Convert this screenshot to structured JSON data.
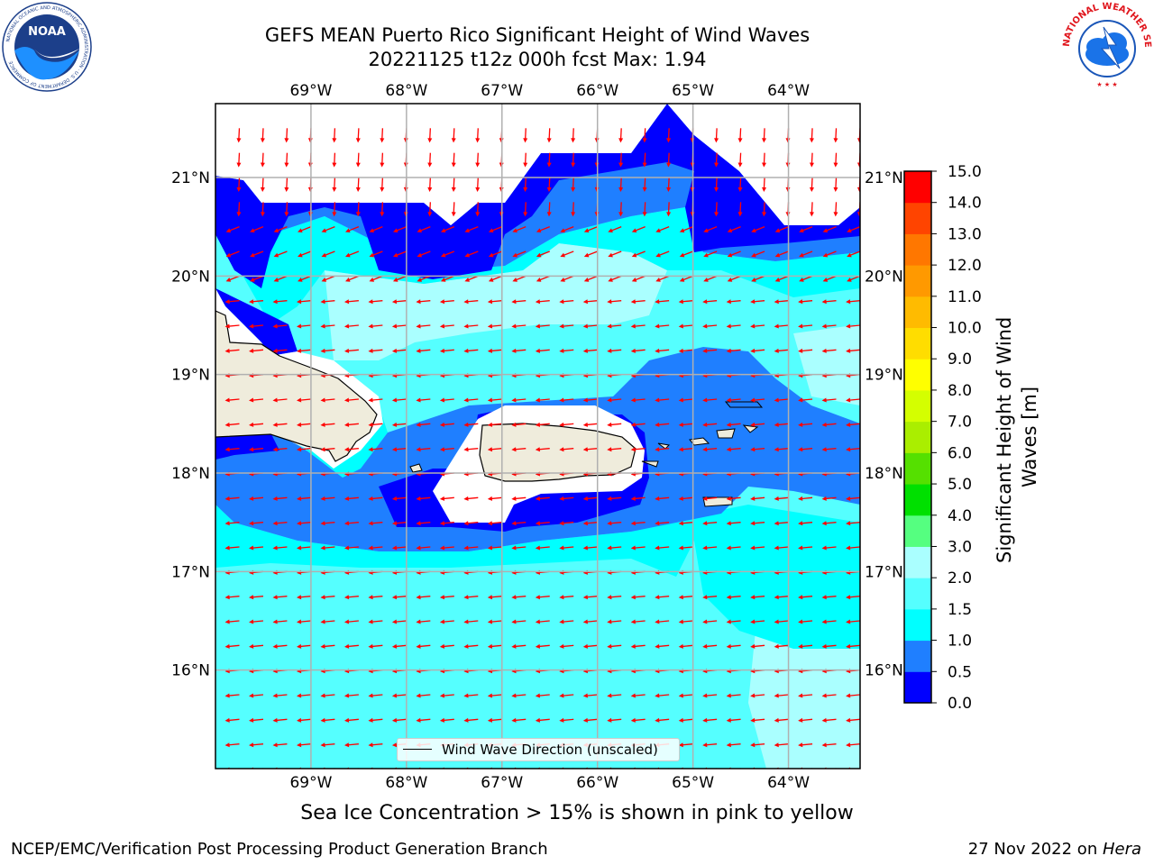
{
  "title": {
    "line1": "GEFS MEAN Puerto Rico Significant Height of Wind Waves",
    "line2": "20221125 t12z 000h fcst   Max: 1.94"
  },
  "map": {
    "lon_range": [
      -70,
      -63.25
    ],
    "lat_range": [
      15,
      21.75
    ],
    "lon_ticks": [
      {
        "value": -69,
        "label": "69°W"
      },
      {
        "value": -68,
        "label": "68°W"
      },
      {
        "value": -67,
        "label": "67°W"
      },
      {
        "value": -66,
        "label": "66°W"
      },
      {
        "value": -65,
        "label": "65°W"
      },
      {
        "value": -64,
        "label": "64°W"
      }
    ],
    "lat_ticks": [
      {
        "value": 21,
        "label": "21°N"
      },
      {
        "value": 20,
        "label": "20°N"
      },
      {
        "value": 19,
        "label": "19°N"
      },
      {
        "value": 18,
        "label": "18°N"
      },
      {
        "value": 17,
        "label": "17°N"
      },
      {
        "value": 16,
        "label": "16°N"
      }
    ],
    "gridlines": true,
    "land_color": "#efecdc",
    "arrow_color": "#ff0000",
    "legend": {
      "label": "Wind Wave Direction (unscaled)",
      "location": "lower-center"
    }
  },
  "colorbar": {
    "label": "Significant Height of Wind Waves [m]",
    "ticks": [
      "0.0",
      "0.5",
      "1.0",
      "1.5",
      "2.0",
      "3.0",
      "4.0",
      "5.0",
      "6.0",
      "7.0",
      "8.0",
      "9.0",
      "10.0",
      "11.0",
      "12.0",
      "13.0",
      "14.0",
      "15.0"
    ],
    "colors": [
      "#0000ff",
      "#1f7fff",
      "#00ffff",
      "#55ffff",
      "#aaffff",
      "#55ff80",
      "#00e000",
      "#55e000",
      "#aaee00",
      "#d4ff00",
      "#ffff00",
      "#ffdd00",
      "#ffbb00",
      "#ff9900",
      "#ff7700",
      "#ff4400",
      "#ff0000"
    ]
  },
  "logos": {
    "noaa_text": "NOAA",
    "noaa_ring": "NATIONAL OCEANIC AND ATMOSPHERIC ADMINISTRATION · U.S. DEPARTMENT OF COMMERCE",
    "nws_ring": "NATIONAL WEATHER SERVICE"
  },
  "ice_note": "Sea Ice Concentration > 15% is shown in pink to yellow",
  "footer": {
    "left": "NCEP/EMC/Verification Post Processing Product Generation Branch",
    "right_prefix": "27 Nov 2022 on ",
    "right_host": "Hera"
  }
}
